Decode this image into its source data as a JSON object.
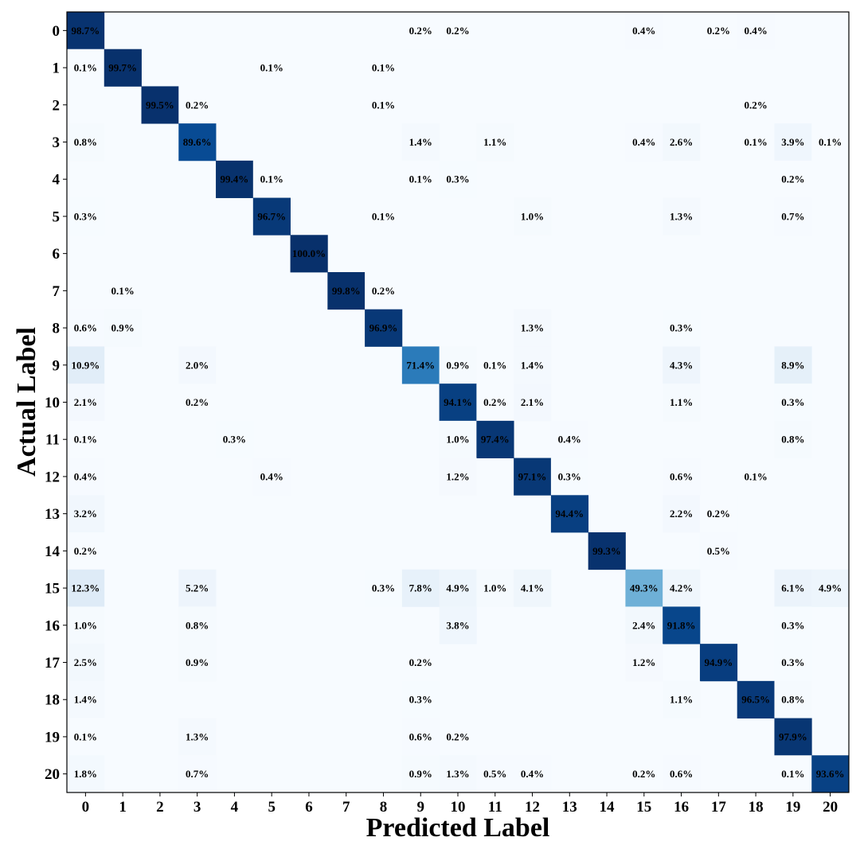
{
  "chart_data": {
    "type": "heatmap",
    "title": "",
    "xlabel": "Predicted Label",
    "ylabel": "Actual Label",
    "x_categories": [
      "0",
      "1",
      "2",
      "3",
      "4",
      "5",
      "6",
      "7",
      "8",
      "9",
      "10",
      "11",
      "12",
      "13",
      "14",
      "15",
      "16",
      "17",
      "18",
      "19",
      "20"
    ],
    "y_categories": [
      "0",
      "1",
      "2",
      "3",
      "4",
      "5",
      "6",
      "7",
      "8",
      "9",
      "10",
      "11",
      "12",
      "13",
      "14",
      "15",
      "16",
      "17",
      "18",
      "19",
      "20"
    ],
    "value_unit": "%",
    "colormap": "Blues",
    "color_low": "#f7fbff",
    "color_high": "#08306b",
    "cells": [
      {
        "r": 0,
        "c": 0,
        "v": 98.7
      },
      {
        "r": 0,
        "c": 9,
        "v": 0.2
      },
      {
        "r": 0,
        "c": 10,
        "v": 0.2
      },
      {
        "r": 0,
        "c": 15,
        "v": 0.4
      },
      {
        "r": 0,
        "c": 17,
        "v": 0.2
      },
      {
        "r": 0,
        "c": 18,
        "v": 0.4
      },
      {
        "r": 1,
        "c": 0,
        "v": 0.1
      },
      {
        "r": 1,
        "c": 1,
        "v": 99.7
      },
      {
        "r": 1,
        "c": 5,
        "v": 0.1
      },
      {
        "r": 1,
        "c": 8,
        "v": 0.1
      },
      {
        "r": 2,
        "c": 2,
        "v": 99.5
      },
      {
        "r": 2,
        "c": 3,
        "v": 0.2
      },
      {
        "r": 2,
        "c": 8,
        "v": 0.1
      },
      {
        "r": 2,
        "c": 18,
        "v": 0.2
      },
      {
        "r": 3,
        "c": 0,
        "v": 0.8
      },
      {
        "r": 3,
        "c": 3,
        "v": 89.6
      },
      {
        "r": 3,
        "c": 9,
        "v": 1.4
      },
      {
        "r": 3,
        "c": 11,
        "v": 1.1
      },
      {
        "r": 3,
        "c": 15,
        "v": 0.4
      },
      {
        "r": 3,
        "c": 16,
        "v": 2.6
      },
      {
        "r": 3,
        "c": 18,
        "v": 0.1
      },
      {
        "r": 3,
        "c": 19,
        "v": 3.9
      },
      {
        "r": 3,
        "c": 20,
        "v": 0.1
      },
      {
        "r": 4,
        "c": 4,
        "v": 99.4
      },
      {
        "r": 4,
        "c": 5,
        "v": 0.1
      },
      {
        "r": 4,
        "c": 9,
        "v": 0.1
      },
      {
        "r": 4,
        "c": 10,
        "v": 0.3
      },
      {
        "r": 4,
        "c": 19,
        "v": 0.2
      },
      {
        "r": 5,
        "c": 0,
        "v": 0.3
      },
      {
        "r": 5,
        "c": 5,
        "v": 96.7
      },
      {
        "r": 5,
        "c": 8,
        "v": 0.1
      },
      {
        "r": 5,
        "c": 12,
        "v": 1.0
      },
      {
        "r": 5,
        "c": 16,
        "v": 1.3
      },
      {
        "r": 5,
        "c": 19,
        "v": 0.7
      },
      {
        "r": 6,
        "c": 6,
        "v": 100.0
      },
      {
        "r": 7,
        "c": 1,
        "v": 0.1
      },
      {
        "r": 7,
        "c": 7,
        "v": 99.8
      },
      {
        "r": 7,
        "c": 8,
        "v": 0.2
      },
      {
        "r": 8,
        "c": 0,
        "v": 0.6
      },
      {
        "r": 8,
        "c": 1,
        "v": 0.9
      },
      {
        "r": 8,
        "c": 8,
        "v": 96.9
      },
      {
        "r": 8,
        "c": 12,
        "v": 1.3
      },
      {
        "r": 8,
        "c": 16,
        "v": 0.3
      },
      {
        "r": 9,
        "c": 0,
        "v": 10.9
      },
      {
        "r": 9,
        "c": 3,
        "v": 2.0
      },
      {
        "r": 9,
        "c": 9,
        "v": 71.4
      },
      {
        "r": 9,
        "c": 10,
        "v": 0.9
      },
      {
        "r": 9,
        "c": 11,
        "v": 0.1
      },
      {
        "r": 9,
        "c": 12,
        "v": 1.4
      },
      {
        "r": 9,
        "c": 16,
        "v": 4.3
      },
      {
        "r": 9,
        "c": 19,
        "v": 8.9
      },
      {
        "r": 10,
        "c": 0,
        "v": 2.1
      },
      {
        "r": 10,
        "c": 3,
        "v": 0.2
      },
      {
        "r": 10,
        "c": 10,
        "v": 94.1
      },
      {
        "r": 10,
        "c": 11,
        "v": 0.2
      },
      {
        "r": 10,
        "c": 12,
        "v": 2.1
      },
      {
        "r": 10,
        "c": 16,
        "v": 1.1
      },
      {
        "r": 10,
        "c": 19,
        "v": 0.3
      },
      {
        "r": 11,
        "c": 0,
        "v": 0.1
      },
      {
        "r": 11,
        "c": 4,
        "v": 0.3
      },
      {
        "r": 11,
        "c": 10,
        "v": 1.0
      },
      {
        "r": 11,
        "c": 11,
        "v": 97.4
      },
      {
        "r": 11,
        "c": 13,
        "v": 0.4
      },
      {
        "r": 11,
        "c": 19,
        "v": 0.8
      },
      {
        "r": 12,
        "c": 0,
        "v": 0.4
      },
      {
        "r": 12,
        "c": 5,
        "v": 0.4
      },
      {
        "r": 12,
        "c": 10,
        "v": 1.2
      },
      {
        "r": 12,
        "c": 12,
        "v": 97.1
      },
      {
        "r": 12,
        "c": 13,
        "v": 0.3
      },
      {
        "r": 12,
        "c": 16,
        "v": 0.6
      },
      {
        "r": 12,
        "c": 18,
        "v": 0.1
      },
      {
        "r": 13,
        "c": 0,
        "v": 3.2
      },
      {
        "r": 13,
        "c": 13,
        "v": 94.4
      },
      {
        "r": 13,
        "c": 16,
        "v": 2.2
      },
      {
        "r": 13,
        "c": 17,
        "v": 0.2
      },
      {
        "r": 14,
        "c": 0,
        "v": 0.2
      },
      {
        "r": 14,
        "c": 14,
        "v": 99.3
      },
      {
        "r": 14,
        "c": 17,
        "v": 0.5
      },
      {
        "r": 15,
        "c": 0,
        "v": 12.3
      },
      {
        "r": 15,
        "c": 3,
        "v": 5.2
      },
      {
        "r": 15,
        "c": 8,
        "v": 0.3
      },
      {
        "r": 15,
        "c": 9,
        "v": 7.8
      },
      {
        "r": 15,
        "c": 10,
        "v": 4.9
      },
      {
        "r": 15,
        "c": 11,
        "v": 1.0
      },
      {
        "r": 15,
        "c": 12,
        "v": 4.1
      },
      {
        "r": 15,
        "c": 15,
        "v": 49.3
      },
      {
        "r": 15,
        "c": 16,
        "v": 4.2
      },
      {
        "r": 15,
        "c": 19,
        "v": 6.1
      },
      {
        "r": 15,
        "c": 20,
        "v": 4.9
      },
      {
        "r": 16,
        "c": 0,
        "v": 1.0
      },
      {
        "r": 16,
        "c": 3,
        "v": 0.8
      },
      {
        "r": 16,
        "c": 10,
        "v": 3.8
      },
      {
        "r": 16,
        "c": 15,
        "v": 2.4
      },
      {
        "r": 16,
        "c": 16,
        "v": 91.8
      },
      {
        "r": 16,
        "c": 19,
        "v": 0.3
      },
      {
        "r": 17,
        "c": 0,
        "v": 2.5
      },
      {
        "r": 17,
        "c": 3,
        "v": 0.9
      },
      {
        "r": 17,
        "c": 9,
        "v": 0.2
      },
      {
        "r": 17,
        "c": 15,
        "v": 1.2
      },
      {
        "r": 17,
        "c": 17,
        "v": 94.9
      },
      {
        "r": 17,
        "c": 19,
        "v": 0.3
      },
      {
        "r": 18,
        "c": 0,
        "v": 1.4
      },
      {
        "r": 18,
        "c": 9,
        "v": 0.3
      },
      {
        "r": 18,
        "c": 16,
        "v": 1.1
      },
      {
        "r": 18,
        "c": 18,
        "v": 96.5
      },
      {
        "r": 18,
        "c": 19,
        "v": 0.8
      },
      {
        "r": 19,
        "c": 0,
        "v": 0.1
      },
      {
        "r": 19,
        "c": 3,
        "v": 1.3
      },
      {
        "r": 19,
        "c": 9,
        "v": 0.6
      },
      {
        "r": 19,
        "c": 10,
        "v": 0.2
      },
      {
        "r": 19,
        "c": 19,
        "v": 97.9
      },
      {
        "r": 20,
        "c": 0,
        "v": 1.8
      },
      {
        "r": 20,
        "c": 3,
        "v": 0.7
      },
      {
        "r": 20,
        "c": 9,
        "v": 0.9
      },
      {
        "r": 20,
        "c": 10,
        "v": 1.3
      },
      {
        "r": 20,
        "c": 11,
        "v": 0.5
      },
      {
        "r": 20,
        "c": 12,
        "v": 0.4
      },
      {
        "r": 20,
        "c": 15,
        "v": 0.2
      },
      {
        "r": 20,
        "c": 16,
        "v": 0.6
      },
      {
        "r": 20,
        "c": 19,
        "v": 0.1
      },
      {
        "r": 20,
        "c": 20,
        "v": 93.6
      }
    ]
  }
}
